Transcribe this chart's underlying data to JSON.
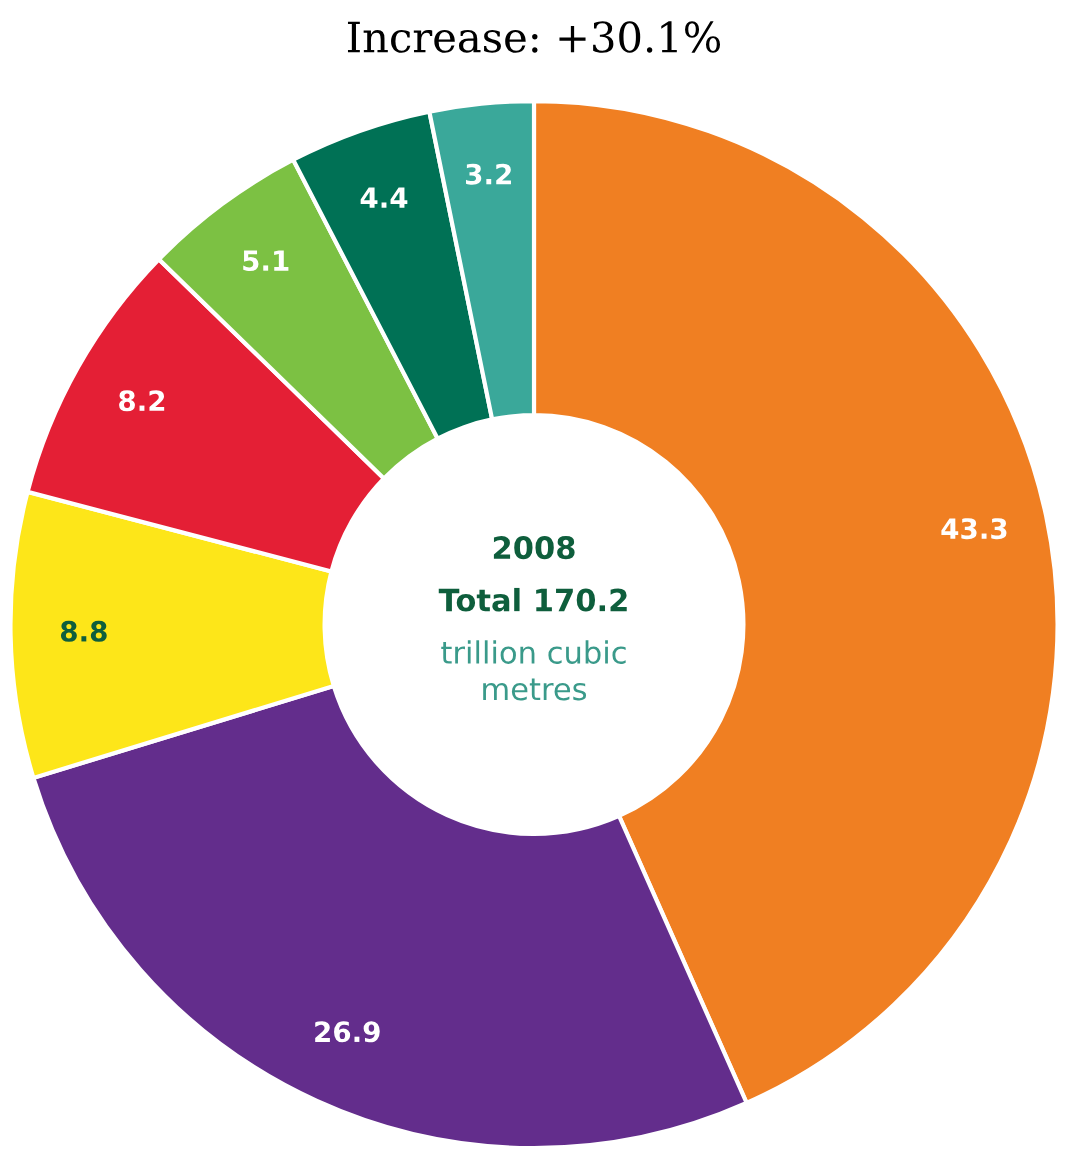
{
  "chart_data": {
    "type": "donut",
    "title": "Increase: +30.1%",
    "categories": [
      null,
      null,
      null,
      null,
      null,
      null,
      null
    ],
    "values": [
      43.3,
      26.9,
      8.8,
      8.2,
      5.1,
      4.4,
      3.2
    ],
    "colors": [
      "#f07f22",
      "#632d8c",
      "#fde619",
      "#e41f35",
      "#7cc143",
      "#007155",
      "#3aa89a"
    ],
    "data_labels": true,
    "annotations": [
      "2008",
      "Total 170.2",
      "trillion cubic metres"
    ]
  }
}
